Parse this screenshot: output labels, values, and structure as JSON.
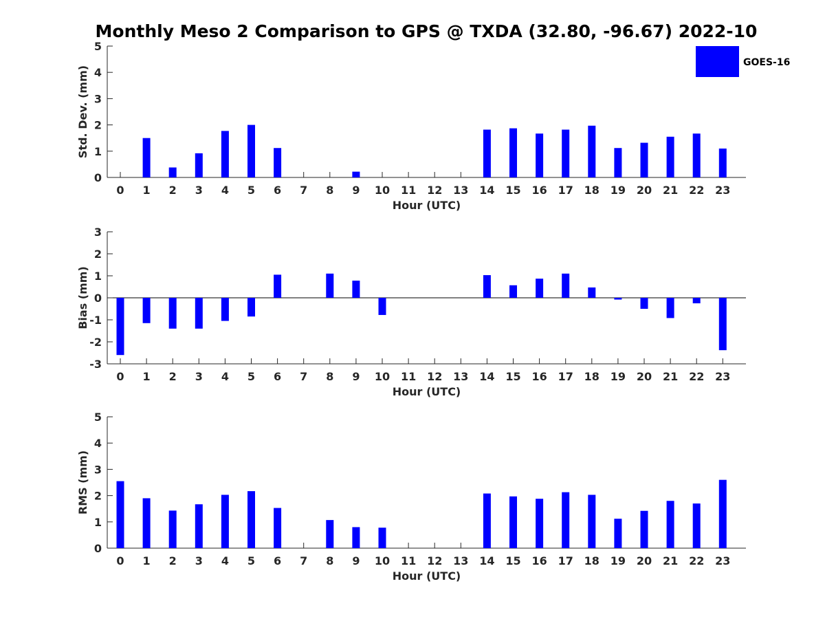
{
  "title": "Monthly Meso 2 Comparison to GPS @ TXDA (32.80, -96.67) 2022-10",
  "legend": {
    "label": "GOES-16",
    "placement": "top-right"
  },
  "colors": {
    "bar": "#0000ff",
    "axis": "#262626"
  },
  "chart_data": [
    {
      "type": "bar",
      "title": "",
      "xlabel": "Hour (UTC)",
      "ylabel": "Std. Dev. (mm)",
      "ylim": [
        0,
        5
      ],
      "yticks": [
        0,
        1,
        2,
        3,
        4,
        5
      ],
      "categories": [
        0,
        1,
        2,
        3,
        4,
        5,
        6,
        7,
        8,
        9,
        10,
        11,
        12,
        13,
        14,
        15,
        16,
        17,
        18,
        19,
        20,
        21,
        22,
        23
      ],
      "series": [
        {
          "name": "GOES-16",
          "values": [
            null,
            1.5,
            0.38,
            0.92,
            1.77,
            2.0,
            1.12,
            null,
            null,
            0.22,
            null,
            null,
            null,
            null,
            1.82,
            1.87,
            1.67,
            1.82,
            1.97,
            1.12,
            1.32,
            1.55,
            1.67,
            1.1
          ]
        }
      ]
    },
    {
      "type": "bar",
      "title": "",
      "xlabel": "Hour (UTC)",
      "ylabel": "Bias (mm)",
      "ylim": [
        -3,
        3
      ],
      "yticks": [
        -3,
        -2,
        -1,
        0,
        1,
        2,
        3
      ],
      "categories": [
        0,
        1,
        2,
        3,
        4,
        5,
        6,
        7,
        8,
        9,
        10,
        11,
        12,
        13,
        14,
        15,
        16,
        17,
        18,
        19,
        20,
        21,
        22,
        23
      ],
      "series": [
        {
          "name": "GOES-16",
          "values": [
            -2.6,
            -1.15,
            -1.4,
            -1.4,
            -1.05,
            -0.85,
            1.05,
            null,
            1.1,
            0.78,
            -0.78,
            null,
            null,
            null,
            1.03,
            0.57,
            0.87,
            1.1,
            0.47,
            -0.08,
            -0.5,
            -0.92,
            -0.25,
            -2.38
          ]
        }
      ]
    },
    {
      "type": "bar",
      "title": "",
      "xlabel": "Hour (UTC)",
      "ylabel": "RMS (mm)",
      "ylim": [
        0,
        5
      ],
      "yticks": [
        0,
        1,
        2,
        3,
        4,
        5
      ],
      "categories": [
        0,
        1,
        2,
        3,
        4,
        5,
        6,
        7,
        8,
        9,
        10,
        11,
        12,
        13,
        14,
        15,
        16,
        17,
        18,
        19,
        20,
        21,
        22,
        23
      ],
      "series": [
        {
          "name": "GOES-16",
          "values": [
            2.55,
            1.9,
            1.43,
            1.67,
            2.03,
            2.17,
            1.53,
            null,
            1.07,
            0.8,
            0.78,
            null,
            null,
            null,
            2.08,
            1.97,
            1.88,
            2.13,
            2.03,
            1.12,
            1.42,
            1.8,
            1.7,
            2.6
          ]
        }
      ]
    }
  ]
}
